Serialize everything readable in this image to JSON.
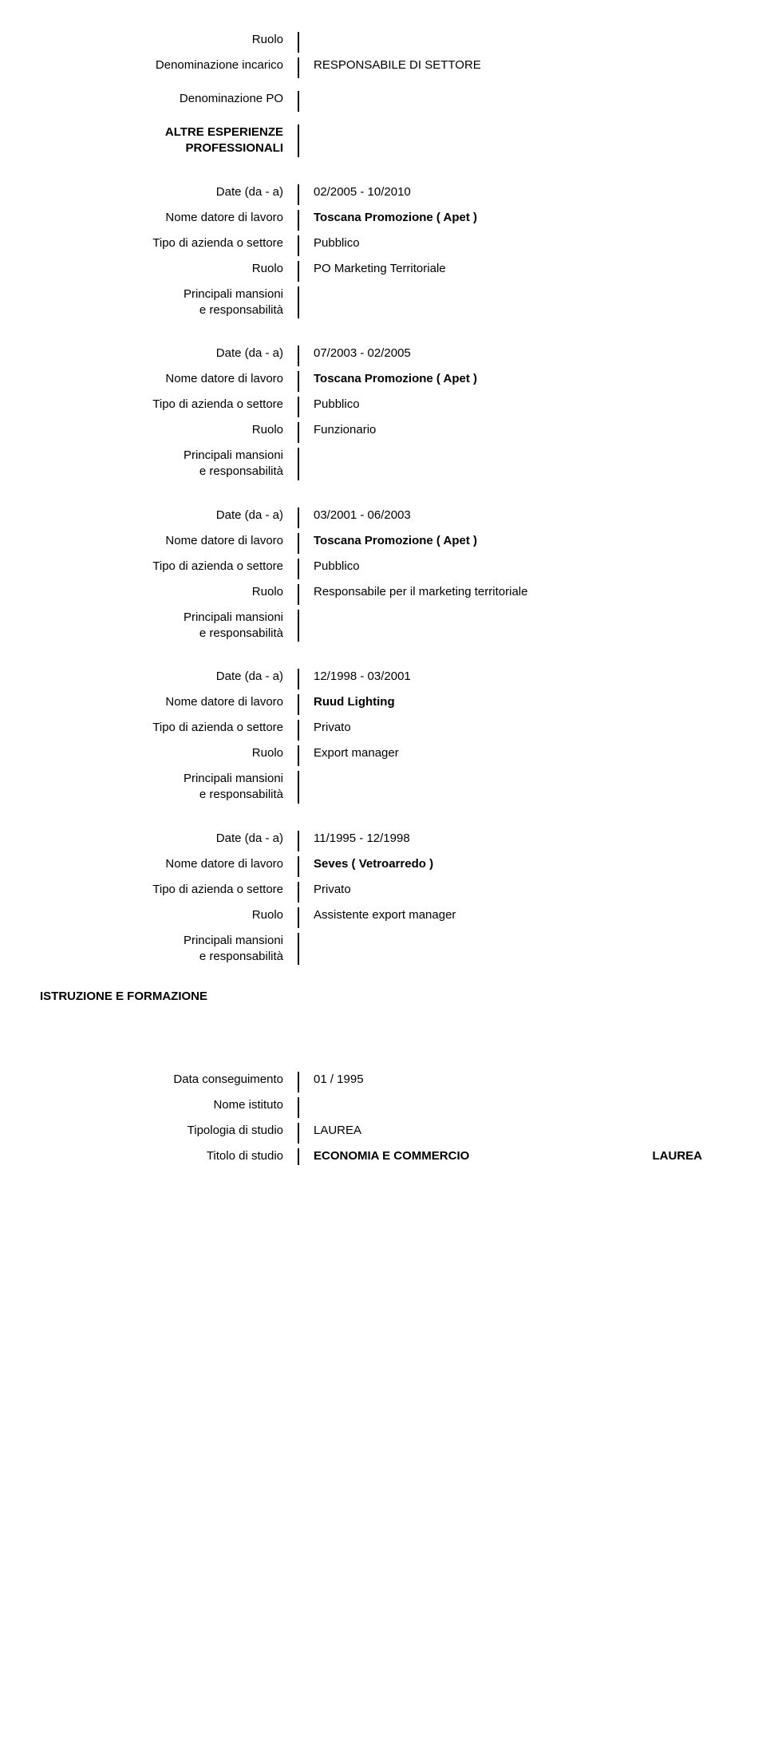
{
  "labels": {
    "ruolo": "Ruolo",
    "denominazione_incarico": "Denominazione incarico",
    "denominazione_po": "Denominazione PO",
    "date_da_a": "Date (da - a)",
    "nome_datore": "Nome datore di lavoro",
    "tipo_azienda": "Tipo di azienda o settore",
    "principali_mansioni": "Principali mansioni",
    "e_responsabilita": "e responsabilità",
    "data_conseguimento": "Data conseguimento",
    "nome_istituto": "Nome istituto",
    "tipologia_studio": "Tipologia di studio",
    "titolo_studio": "Titolo di studio"
  },
  "headings": {
    "altre_esperienze": "ALTRE ESPERIENZE",
    "professionali": "PROFESSIONALI",
    "istruzione": "ISTRUZIONE E FORMAZIONE"
  },
  "top": {
    "denominazione_incarico_value": "RESPONSABILE DI SETTORE"
  },
  "exp": [
    {
      "date": "02/2005 - 10/2010",
      "datore": "Toscana Promozione ( Apet )",
      "tipo": "Pubblico",
      "ruolo": "PO Marketing Territoriale"
    },
    {
      "date": "07/2003 - 02/2005",
      "datore": "Toscana Promozione ( Apet )",
      "tipo": "Pubblico",
      "ruolo": "Funzionario"
    },
    {
      "date": "03/2001 - 06/2003",
      "datore": "Toscana Promozione ( Apet )",
      "tipo": "Pubblico",
      "ruolo": "Responsabile per il marketing territoriale"
    },
    {
      "date": "12/1998 - 03/2001",
      "datore": "Ruud Lighting",
      "tipo": "Privato",
      "ruolo": "Export manager"
    },
    {
      "date": "11/1995 - 12/1998",
      "datore": "Seves ( Vetroarredo )",
      "tipo": "Privato",
      "ruolo": "Assistente export manager"
    }
  ],
  "education": {
    "data_conseguimento": "01 / 1995",
    "tipologia": "LAUREA",
    "titolo": "ECONOMIA E COMMERCIO",
    "titolo_extra": "LAUREA"
  }
}
